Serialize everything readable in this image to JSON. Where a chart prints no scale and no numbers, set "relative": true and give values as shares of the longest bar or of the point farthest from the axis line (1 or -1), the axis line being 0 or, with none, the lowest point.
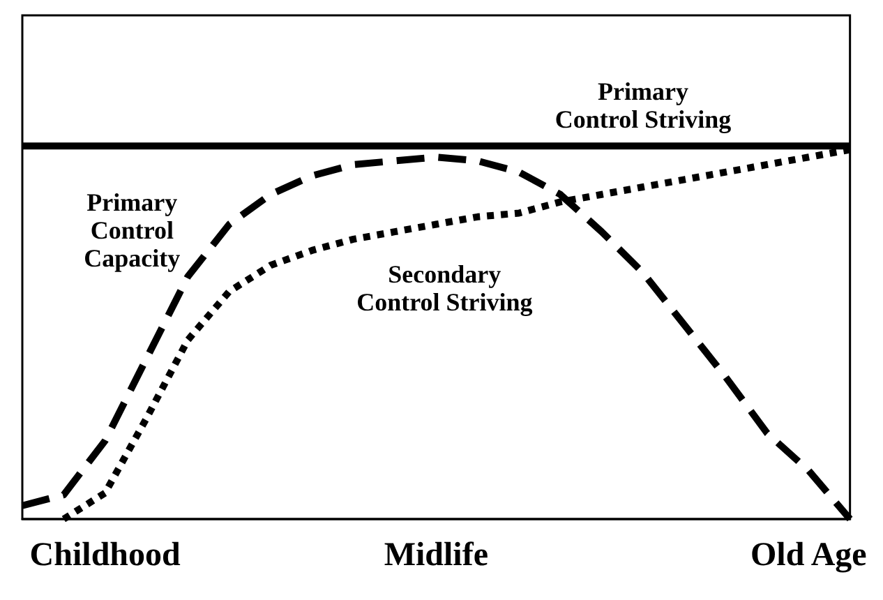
{
  "chart_data": {
    "type": "line",
    "relative": true,
    "categories": [
      null,
      null,
      "Childhood",
      null,
      null,
      null,
      null,
      null,
      null,
      null,
      "Midlife",
      null,
      null,
      null,
      null,
      null,
      null,
      null,
      null,
      "Old Age",
      null
    ],
    "series": [
      {
        "name": "Primary Control Striving",
        "color": "#000000",
        "line_style": "solid",
        "values": [
          1,
          1,
          1,
          1,
          1,
          1,
          1,
          1,
          1,
          1,
          1,
          1,
          1,
          1,
          1,
          1,
          1,
          1,
          1,
          1,
          1
        ]
      },
      {
        "name": "Primary Control Capacity",
        "color": "#000000",
        "line_style": "dashed",
        "values": [
          0.036,
          0.065,
          0.21,
          0.43,
          0.65,
          0.79,
          0.87,
          0.92,
          0.95,
          0.96,
          0.97,
          0.96,
          0.93,
          0.87,
          0.77,
          0.66,
          0.52,
          0.38,
          0.23,
          0.13,
          0.0
        ]
      },
      {
        "name": "Secondary Control Striving",
        "color": "#000000",
        "line_style": "dotted",
        "values": [
          null,
          0.0,
          0.07,
          0.27,
          0.48,
          0.61,
          0.68,
          0.72,
          0.75,
          0.77,
          0.79,
          0.81,
          0.82,
          0.85,
          0.87,
          0.89,
          0.91,
          0.93,
          0.95,
          0.97,
          0.99
        ]
      }
    ],
    "legend": false,
    "grid": false,
    "marker": "none"
  }
}
